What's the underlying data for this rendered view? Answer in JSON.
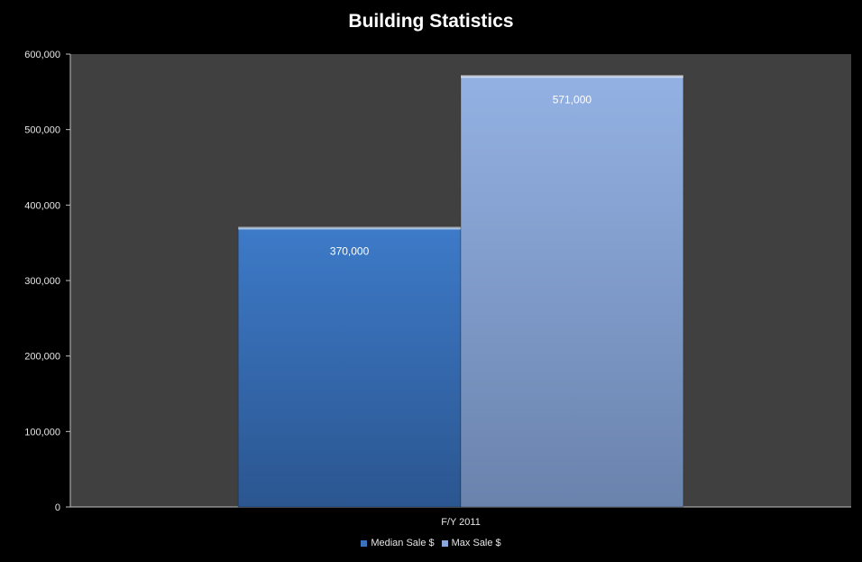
{
  "chart_data": {
    "type": "bar",
    "title": "Building Statistics",
    "categories": [
      "F/Y 2011"
    ],
    "series": [
      {
        "name": "Median Sale $",
        "values": [
          370000
        ],
        "value_labels": [
          "370,000"
        ],
        "color": "#3a72bd"
      },
      {
        "name": "Max Sale $",
        "values": [
          571000
        ],
        "value_labels": [
          "571,000"
        ],
        "color": "#8aa9db"
      }
    ],
    "ylim": [
      0,
      600000
    ],
    "yticks": [
      0,
      100000,
      200000,
      300000,
      400000,
      500000,
      600000
    ],
    "ytick_labels": [
      "0",
      "100,000",
      "200,000",
      "300,000",
      "400,000",
      "500,000",
      "600,000"
    ],
    "grid": false,
    "legend_position": "bottom",
    "plot_background": "#404040"
  }
}
